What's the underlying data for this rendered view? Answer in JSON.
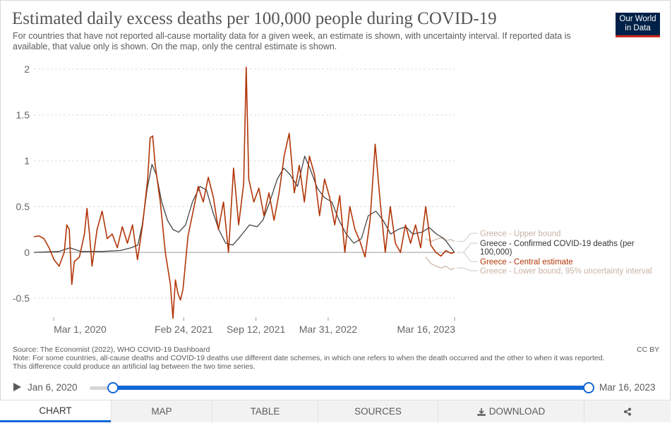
{
  "header": {
    "title": "Estimated daily excess deaths per 100,000 people during COVID-19",
    "subtitle": "For countries that have not reported all-cause mortality data for a given week, an estimate is shown, with uncertainty interval. If reported data is available, that value only is shown. On the map, only the central estimate is shown.",
    "logo_line1": "Our World",
    "logo_line2": "in Data"
  },
  "footer": {
    "source": "Source: The Economist (2022), WHO COVID-19 Dashboard",
    "note_line1": "Note: For some countries, all-cause deaths and COVID-19 deaths use different date schemes, in which one refers to when the death occurred and the other to when it was reported.",
    "note_line2": "This difference could produce an artificial lag between the two time series.",
    "license": "CC BY"
  },
  "timeline": {
    "start": "Jan 6, 2020",
    "end": "Mar 16, 2023"
  },
  "tabs": {
    "chart": "CHART",
    "map": "MAP",
    "table": "TABLE",
    "sources": "SOURCES",
    "download": "DOWNLOAD"
  },
  "icons": {
    "play": "play-icon",
    "download": "download-icon",
    "share": "share-icon"
  },
  "colors": {
    "central": "#b13507",
    "bounds": "#c9b1a3",
    "confirmed": "#444444",
    "accent": "#1368d6",
    "logo_bg": "#002147",
    "logo_bar": "#ce261e"
  },
  "chart_data": {
    "type": "line",
    "title": "Estimated daily excess deaths per 100,000 people during COVID-19",
    "xlabel": "",
    "ylabel": "",
    "x_start": "2020-01-06",
    "x_end": "2023-03-16",
    "ylim": [
      -0.7,
      2.05
    ],
    "yticks": [
      2,
      1.5,
      1,
      0.5,
      0,
      -0.5
    ],
    "ytick_labels": [
      "2",
      "1.5",
      "1",
      "0.5",
      "0",
      "-0.5"
    ],
    "xticks": [
      {
        "date": "2020-03-01",
        "label": "Mar 1, 2020"
      },
      {
        "date": "2021-02-24",
        "label": "Feb 24, 2021"
      },
      {
        "date": "2021-09-12",
        "label": "Sep 12, 2021"
      },
      {
        "date": "2022-03-31",
        "label": "Mar 31, 2022"
      },
      {
        "date": "2023-03-16",
        "label": "Mar 16, 2023"
      }
    ],
    "series": [
      {
        "name": "Greece - Central estimate",
        "legend": "Greece - Central estimate",
        "style": "central",
        "points": [
          [
            "2020-01-06",
            0.17
          ],
          [
            "2020-01-20",
            0.18
          ],
          [
            "2020-02-03",
            0.15
          ],
          [
            "2020-02-17",
            0.05
          ],
          [
            "2020-03-02",
            -0.08
          ],
          [
            "2020-03-16",
            -0.15
          ],
          [
            "2020-03-30",
            0.0
          ],
          [
            "2020-04-06",
            0.3
          ],
          [
            "2020-04-13",
            0.25
          ],
          [
            "2020-04-20",
            -0.35
          ],
          [
            "2020-04-27",
            -0.1
          ],
          [
            "2020-05-11",
            -0.05
          ],
          [
            "2020-05-25",
            0.2
          ],
          [
            "2020-06-01",
            0.48
          ],
          [
            "2020-06-08",
            0.2
          ],
          [
            "2020-06-15",
            -0.15
          ],
          [
            "2020-06-29",
            0.25
          ],
          [
            "2020-07-13",
            0.45
          ],
          [
            "2020-07-27",
            0.15
          ],
          [
            "2020-08-10",
            0.2
          ],
          [
            "2020-08-24",
            0.05
          ],
          [
            "2020-09-07",
            0.28
          ],
          [
            "2020-09-21",
            0.1
          ],
          [
            "2020-10-05",
            0.3
          ],
          [
            "2020-10-19",
            -0.08
          ],
          [
            "2020-11-02",
            0.3
          ],
          [
            "2020-11-16",
            0.8
          ],
          [
            "2020-11-23",
            1.25
          ],
          [
            "2020-11-30",
            1.27
          ],
          [
            "2020-12-07",
            0.95
          ],
          [
            "2020-12-21",
            0.55
          ],
          [
            "2021-01-04",
            0.0
          ],
          [
            "2021-01-18",
            -0.35
          ],
          [
            "2021-01-25",
            -0.72
          ],
          [
            "2021-02-01",
            -0.3
          ],
          [
            "2021-02-08",
            -0.45
          ],
          [
            "2021-02-15",
            -0.52
          ],
          [
            "2021-02-22",
            -0.4
          ],
          [
            "2021-03-01",
            -0.1
          ],
          [
            "2021-03-08",
            0.18
          ],
          [
            "2021-03-22",
            0.45
          ],
          [
            "2021-04-05",
            0.72
          ],
          [
            "2021-04-19",
            0.55
          ],
          [
            "2021-05-03",
            0.82
          ],
          [
            "2021-05-17",
            0.6
          ],
          [
            "2021-05-31",
            0.25
          ],
          [
            "2021-06-14",
            0.55
          ],
          [
            "2021-06-28",
            0.0
          ],
          [
            "2021-07-12",
            0.92
          ],
          [
            "2021-07-26",
            0.3
          ],
          [
            "2021-08-09",
            0.75
          ],
          [
            "2021-08-16",
            2.02
          ],
          [
            "2021-08-23",
            0.8
          ],
          [
            "2021-09-06",
            0.55
          ],
          [
            "2021-09-20",
            0.7
          ],
          [
            "2021-10-04",
            0.4
          ],
          [
            "2021-10-18",
            0.65
          ],
          [
            "2021-11-01",
            0.35
          ],
          [
            "2021-11-15",
            0.65
          ],
          [
            "2021-11-29",
            1.05
          ],
          [
            "2021-12-13",
            1.3
          ],
          [
            "2021-12-27",
            0.65
          ],
          [
            "2022-01-10",
            0.95
          ],
          [
            "2022-01-24",
            0.55
          ],
          [
            "2022-02-07",
            1.05
          ],
          [
            "2022-02-21",
            0.85
          ],
          [
            "2022-03-07",
            0.4
          ],
          [
            "2022-03-21",
            0.8
          ],
          [
            "2022-04-04",
            0.6
          ],
          [
            "2022-04-18",
            0.3
          ],
          [
            "2022-05-02",
            0.62
          ],
          [
            "2022-05-16",
            0.0
          ],
          [
            "2022-05-30",
            0.5
          ],
          [
            "2022-06-13",
            0.25
          ],
          [
            "2022-06-27",
            0.12
          ],
          [
            "2022-07-11",
            -0.05
          ],
          [
            "2022-07-25",
            0.35
          ],
          [
            "2022-08-08",
            1.18
          ],
          [
            "2022-08-22",
            0.55
          ],
          [
            "2022-09-05",
            0.0
          ],
          [
            "2022-09-19",
            0.5
          ],
          [
            "2022-10-03",
            0.1
          ],
          [
            "2022-10-17",
            0.0
          ],
          [
            "2022-10-31",
            0.3
          ],
          [
            "2022-11-14",
            0.1
          ],
          [
            "2022-11-28",
            0.3
          ],
          [
            "2022-12-12",
            0.05
          ],
          [
            "2022-12-26",
            0.5
          ],
          [
            "2023-01-09",
            0.08
          ],
          [
            "2023-01-23",
            0.0
          ],
          [
            "2023-02-06",
            -0.04
          ],
          [
            "2023-02-20",
            0.02
          ],
          [
            "2023-03-06",
            -0.01
          ],
          [
            "2023-03-16",
            0.0
          ]
        ]
      },
      {
        "name": "Greece - Confirmed COVID-19 deaths (per 100,000)",
        "legend": "Greece - Confirmed COVID-19 deaths (per 100,000)",
        "style": "confirmed",
        "points": [
          [
            "2020-01-06",
            0.0
          ],
          [
            "2020-03-15",
            0.01
          ],
          [
            "2020-04-15",
            0.05
          ],
          [
            "2020-05-15",
            0.01
          ],
          [
            "2020-07-15",
            0.01
          ],
          [
            "2020-09-01",
            0.02
          ],
          [
            "2020-10-01",
            0.05
          ],
          [
            "2020-10-20",
            0.08
          ],
          [
            "2020-11-01",
            0.3
          ],
          [
            "2020-11-15",
            0.7
          ],
          [
            "2020-11-28",
            0.96
          ],
          [
            "2020-12-10",
            0.85
          ],
          [
            "2020-12-25",
            0.55
          ],
          [
            "2021-01-10",
            0.35
          ],
          [
            "2021-01-25",
            0.25
          ],
          [
            "2021-02-10",
            0.22
          ],
          [
            "2021-03-01",
            0.3
          ],
          [
            "2021-03-20",
            0.55
          ],
          [
            "2021-04-10",
            0.72
          ],
          [
            "2021-04-28",
            0.68
          ],
          [
            "2021-05-15",
            0.45
          ],
          [
            "2021-06-01",
            0.25
          ],
          [
            "2021-06-20",
            0.1
          ],
          [
            "2021-07-10",
            0.08
          ],
          [
            "2021-08-01",
            0.18
          ],
          [
            "2021-08-25",
            0.3
          ],
          [
            "2021-09-15",
            0.28
          ],
          [
            "2021-10-01",
            0.35
          ],
          [
            "2021-10-20",
            0.55
          ],
          [
            "2021-11-10",
            0.8
          ],
          [
            "2021-11-28",
            0.92
          ],
          [
            "2021-12-15",
            0.85
          ],
          [
            "2022-01-05",
            0.72
          ],
          [
            "2022-01-25",
            1.05
          ],
          [
            "2022-02-10",
            0.9
          ],
          [
            "2022-03-01",
            0.7
          ],
          [
            "2022-03-20",
            0.6
          ],
          [
            "2022-04-10",
            0.55
          ],
          [
            "2022-04-30",
            0.35
          ],
          [
            "2022-05-20",
            0.2
          ],
          [
            "2022-06-10",
            0.1
          ],
          [
            "2022-07-01",
            0.15
          ],
          [
            "2022-07-20",
            0.4
          ],
          [
            "2022-08-10",
            0.45
          ],
          [
            "2022-08-30",
            0.35
          ],
          [
            "2022-09-20",
            0.2
          ],
          [
            "2022-10-10",
            0.25
          ],
          [
            "2022-11-01",
            0.28
          ],
          [
            "2022-11-20",
            0.2
          ],
          [
            "2022-12-15",
            0.22
          ],
          [
            "2023-01-05",
            0.27
          ],
          [
            "2023-01-25",
            0.2
          ],
          [
            "2023-02-15",
            0.15
          ],
          [
            "2023-03-16",
            0.0
          ]
        ]
      },
      {
        "name": "Greece - Upper bound",
        "legend": "Greece - Upper bound",
        "style": "bound",
        "points": [
          [
            "2022-12-26",
            0.15
          ],
          [
            "2023-01-09",
            0.12
          ],
          [
            "2023-01-23",
            0.14
          ],
          [
            "2023-02-06",
            0.16
          ],
          [
            "2023-02-20",
            0.13
          ],
          [
            "2023-03-06",
            0.14
          ],
          [
            "2023-03-16",
            0.12
          ]
        ]
      },
      {
        "name": "Greece - Lower bound, 95% uncertainty interval",
        "legend": "Greece - Lower bound, 95% uncertainty interval",
        "style": "bound",
        "points": [
          [
            "2022-12-26",
            -0.05
          ],
          [
            "2023-01-09",
            -0.12
          ],
          [
            "2023-01-23",
            -0.15
          ],
          [
            "2023-02-06",
            -0.17
          ],
          [
            "2023-02-20",
            -0.15
          ],
          [
            "2023-03-06",
            -0.19
          ],
          [
            "2023-03-16",
            -0.17
          ]
        ]
      }
    ]
  }
}
